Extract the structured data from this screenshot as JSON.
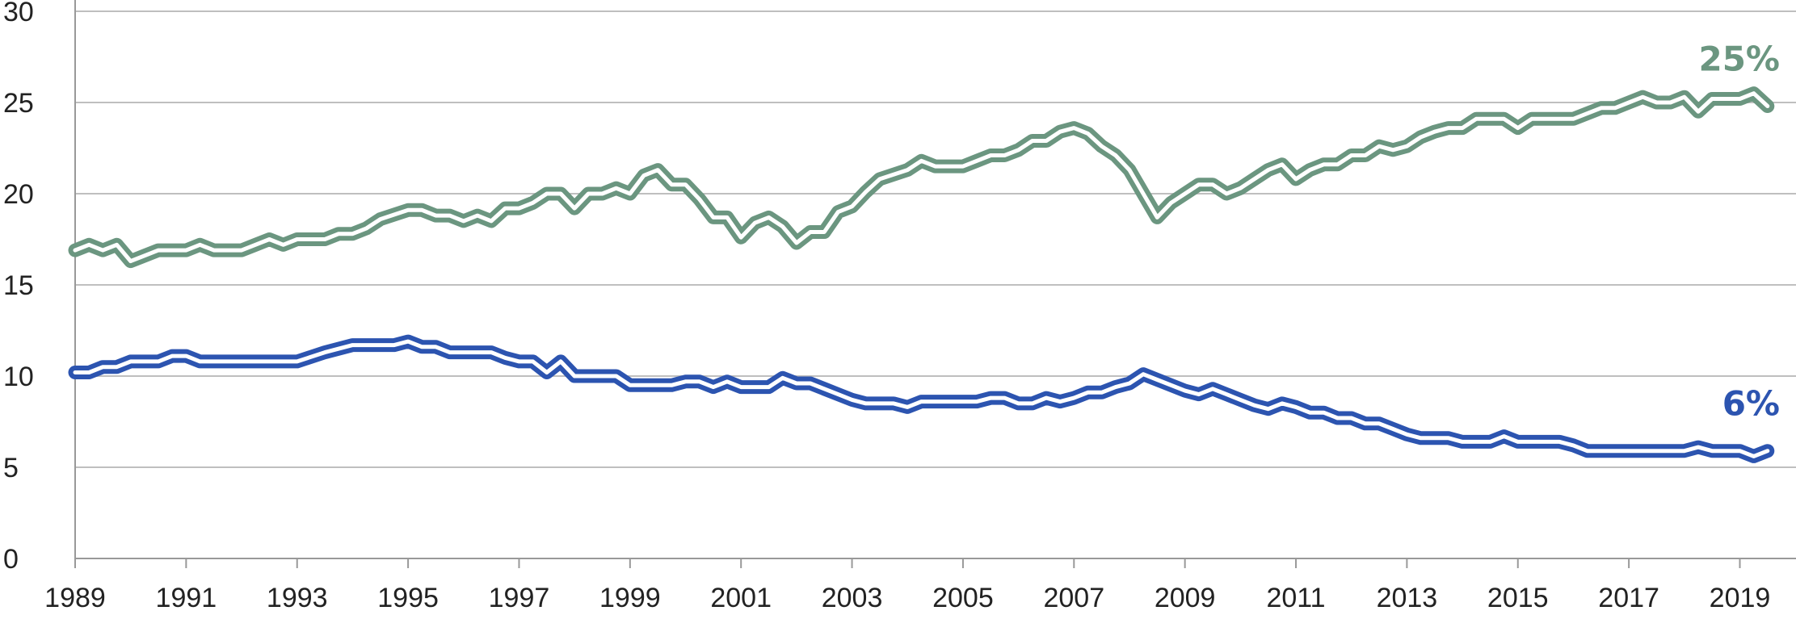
{
  "chart_data": {
    "type": "line",
    "title": "",
    "xlabel": "",
    "ylabel": "",
    "xlim": [
      1989,
      2019.75
    ],
    "ylim": [
      0,
      30
    ],
    "grid": true,
    "y_ticks": [
      "0",
      "5",
      "10",
      "15",
      "20",
      "25",
      "30"
    ],
    "x_ticks": [
      "1989",
      "1991",
      "1993",
      "1995",
      "1997",
      "1999",
      "2001",
      "2003",
      "2005",
      "2007",
      "2009",
      "2011",
      "2013",
      "2015",
      "2017",
      "2019"
    ],
    "series": [
      {
        "color": "#6b9680",
        "end_label": "25%",
        "points": [
          [
            1989.0,
            16.9
          ],
          [
            1989.25,
            17.2
          ],
          [
            1989.5,
            16.9
          ],
          [
            1989.75,
            17.2
          ],
          [
            1990.0,
            16.3
          ],
          [
            1990.25,
            16.6
          ],
          [
            1990.5,
            16.9
          ],
          [
            1991.0,
            16.9
          ],
          [
            1991.25,
            17.2
          ],
          [
            1991.5,
            16.9
          ],
          [
            1992.0,
            16.9
          ],
          [
            1992.25,
            17.2
          ],
          [
            1992.5,
            17.5
          ],
          [
            1992.75,
            17.2
          ],
          [
            1993.0,
            17.5
          ],
          [
            1993.5,
            17.5
          ],
          [
            1993.75,
            17.8
          ],
          [
            1994.0,
            17.8
          ],
          [
            1994.25,
            18.1
          ],
          [
            1994.5,
            18.6
          ],
          [
            1995.0,
            19.1
          ],
          [
            1995.25,
            19.1
          ],
          [
            1995.5,
            18.8
          ],
          [
            1995.75,
            18.8
          ],
          [
            1996.0,
            18.5
          ],
          [
            1996.25,
            18.8
          ],
          [
            1996.5,
            18.5
          ],
          [
            1996.75,
            19.2
          ],
          [
            1997.0,
            19.2
          ],
          [
            1997.25,
            19.5
          ],
          [
            1997.5,
            20.0
          ],
          [
            1997.75,
            20.0
          ],
          [
            1998.0,
            19.2
          ],
          [
            1998.25,
            20.0
          ],
          [
            1998.5,
            20.0
          ],
          [
            1998.75,
            20.3
          ],
          [
            1999.0,
            20.0
          ],
          [
            1999.25,
            21.0
          ],
          [
            1999.5,
            21.3
          ],
          [
            1999.75,
            20.5
          ],
          [
            2000.0,
            20.5
          ],
          [
            2000.25,
            19.7
          ],
          [
            2000.5,
            18.7
          ],
          [
            2000.75,
            18.7
          ],
          [
            2001.0,
            17.6
          ],
          [
            2001.25,
            18.4
          ],
          [
            2001.5,
            18.7
          ],
          [
            2001.75,
            18.2
          ],
          [
            2002.0,
            17.3
          ],
          [
            2002.25,
            17.9
          ],
          [
            2002.5,
            17.9
          ],
          [
            2002.75,
            19.0
          ],
          [
            2003.0,
            19.3
          ],
          [
            2003.25,
            20.1
          ],
          [
            2003.5,
            20.8
          ],
          [
            2004.0,
            21.3
          ],
          [
            2004.25,
            21.8
          ],
          [
            2004.5,
            21.5
          ],
          [
            2005.0,
            21.5
          ],
          [
            2005.25,
            21.8
          ],
          [
            2005.5,
            22.1
          ],
          [
            2005.75,
            22.1
          ],
          [
            2006.0,
            22.4
          ],
          [
            2006.25,
            22.9
          ],
          [
            2006.5,
            22.9
          ],
          [
            2006.75,
            23.4
          ],
          [
            2007.0,
            23.6
          ],
          [
            2007.25,
            23.3
          ],
          [
            2007.5,
            22.6
          ],
          [
            2007.75,
            22.1
          ],
          [
            2008.0,
            21.3
          ],
          [
            2008.25,
            20.0
          ],
          [
            2008.5,
            18.7
          ],
          [
            2008.75,
            19.5
          ],
          [
            2009.0,
            20.0
          ],
          [
            2009.25,
            20.5
          ],
          [
            2009.5,
            20.5
          ],
          [
            2009.75,
            20.0
          ],
          [
            2010.0,
            20.3
          ],
          [
            2010.25,
            20.8
          ],
          [
            2010.5,
            21.3
          ],
          [
            2010.75,
            21.6
          ],
          [
            2011.0,
            20.8
          ],
          [
            2011.25,
            21.3
          ],
          [
            2011.5,
            21.6
          ],
          [
            2011.75,
            21.6
          ],
          [
            2012.0,
            22.1
          ],
          [
            2012.25,
            22.1
          ],
          [
            2012.5,
            22.6
          ],
          [
            2012.75,
            22.4
          ],
          [
            2013.0,
            22.6
          ],
          [
            2013.25,
            23.1
          ],
          [
            2013.5,
            23.4
          ],
          [
            2013.75,
            23.6
          ],
          [
            2014.0,
            23.6
          ],
          [
            2014.25,
            24.1
          ],
          [
            2014.5,
            24.1
          ],
          [
            2014.75,
            24.1
          ],
          [
            2015.0,
            23.6
          ],
          [
            2015.25,
            24.1
          ],
          [
            2016.0,
            24.1
          ],
          [
            2016.25,
            24.4
          ],
          [
            2016.5,
            24.7
          ],
          [
            2016.75,
            24.7
          ],
          [
            2017.0,
            25.0
          ],
          [
            2017.25,
            25.3
          ],
          [
            2017.5,
            25.0
          ],
          [
            2017.75,
            25.0
          ],
          [
            2018.0,
            25.3
          ],
          [
            2018.25,
            24.5
          ],
          [
            2018.5,
            25.2
          ],
          [
            2018.75,
            25.2
          ],
          [
            2019.0,
            25.2
          ],
          [
            2019.25,
            25.5
          ],
          [
            2019.5,
            24.8
          ]
        ]
      },
      {
        "color": "#2c54b0",
        "end_label": "6%",
        "points": [
          [
            1989.0,
            10.2
          ],
          [
            1989.25,
            10.2
          ],
          [
            1989.5,
            10.5
          ],
          [
            1989.75,
            10.5
          ],
          [
            1990.0,
            10.8
          ],
          [
            1990.25,
            10.8
          ],
          [
            1990.5,
            10.8
          ],
          [
            1990.75,
            11.1
          ],
          [
            1991.0,
            11.1
          ],
          [
            1991.25,
            10.8
          ],
          [
            1992.0,
            10.8
          ],
          [
            1993.0,
            10.8
          ],
          [
            1993.5,
            11.3
          ],
          [
            1994.0,
            11.7
          ],
          [
            1994.5,
            11.7
          ],
          [
            1994.75,
            11.7
          ],
          [
            1995.0,
            11.9
          ],
          [
            1995.25,
            11.6
          ],
          [
            1995.5,
            11.6
          ],
          [
            1995.75,
            11.3
          ],
          [
            1996.0,
            11.3
          ],
          [
            1996.5,
            11.3
          ],
          [
            1996.75,
            11.0
          ],
          [
            1997.0,
            10.8
          ],
          [
            1997.25,
            10.8
          ],
          [
            1997.5,
            10.2
          ],
          [
            1997.75,
            10.8
          ],
          [
            1998.0,
            10.0
          ],
          [
            1998.5,
            10.0
          ],
          [
            1998.75,
            10.0
          ],
          [
            1999.0,
            9.5
          ],
          [
            1999.5,
            9.5
          ],
          [
            1999.75,
            9.5
          ],
          [
            2000.0,
            9.7
          ],
          [
            2000.25,
            9.7
          ],
          [
            2000.5,
            9.4
          ],
          [
            2000.75,
            9.7
          ],
          [
            2001.0,
            9.4
          ],
          [
            2001.25,
            9.4
          ],
          [
            2001.5,
            9.4
          ],
          [
            2001.75,
            9.9
          ],
          [
            2002.0,
            9.6
          ],
          [
            2002.25,
            9.6
          ],
          [
            2002.5,
            9.3
          ],
          [
            2002.75,
            9.0
          ],
          [
            2003.0,
            8.7
          ],
          [
            2003.25,
            8.5
          ],
          [
            2003.5,
            8.5
          ],
          [
            2003.75,
            8.5
          ],
          [
            2004.0,
            8.3
          ],
          [
            2004.25,
            8.6
          ],
          [
            2005.0,
            8.6
          ],
          [
            2005.25,
            8.6
          ],
          [
            2005.5,
            8.8
          ],
          [
            2005.75,
            8.8
          ],
          [
            2006.0,
            8.5
          ],
          [
            2006.25,
            8.5
          ],
          [
            2006.5,
            8.8
          ],
          [
            2006.75,
            8.6
          ],
          [
            2007.0,
            8.8
          ],
          [
            2007.25,
            9.1
          ],
          [
            2007.5,
            9.1
          ],
          [
            2007.75,
            9.4
          ],
          [
            2008.0,
            9.6
          ],
          [
            2008.25,
            10.1
          ],
          [
            2008.5,
            9.8
          ],
          [
            2009.0,
            9.2
          ],
          [
            2009.25,
            9.0
          ],
          [
            2009.5,
            9.3
          ],
          [
            2009.75,
            9.0
          ],
          [
            2010.0,
            8.7
          ],
          [
            2010.25,
            8.4
          ],
          [
            2010.5,
            8.2
          ],
          [
            2010.75,
            8.5
          ],
          [
            2011.0,
            8.3
          ],
          [
            2011.25,
            8.0
          ],
          [
            2011.5,
            8.0
          ],
          [
            2011.75,
            7.7
          ],
          [
            2012.0,
            7.7
          ],
          [
            2012.25,
            7.4
          ],
          [
            2012.5,
            7.4
          ],
          [
            2012.75,
            7.1
          ],
          [
            2013.0,
            6.8
          ],
          [
            2013.25,
            6.6
          ],
          [
            2013.5,
            6.6
          ],
          [
            2013.75,
            6.6
          ],
          [
            2014.0,
            6.4
          ],
          [
            2014.25,
            6.4
          ],
          [
            2014.5,
            6.4
          ],
          [
            2014.75,
            6.7
          ],
          [
            2015.0,
            6.4
          ],
          [
            2015.25,
            6.4
          ],
          [
            2015.75,
            6.4
          ],
          [
            2016.0,
            6.2
          ],
          [
            2016.25,
            5.9
          ],
          [
            2016.5,
            5.9
          ],
          [
            2017.0,
            5.9
          ],
          [
            2018.0,
            5.9
          ],
          [
            2018.25,
            6.1
          ],
          [
            2018.5,
            5.9
          ],
          [
            2019.0,
            5.9
          ],
          [
            2019.25,
            5.6
          ],
          [
            2019.5,
            5.9
          ]
        ]
      }
    ]
  }
}
